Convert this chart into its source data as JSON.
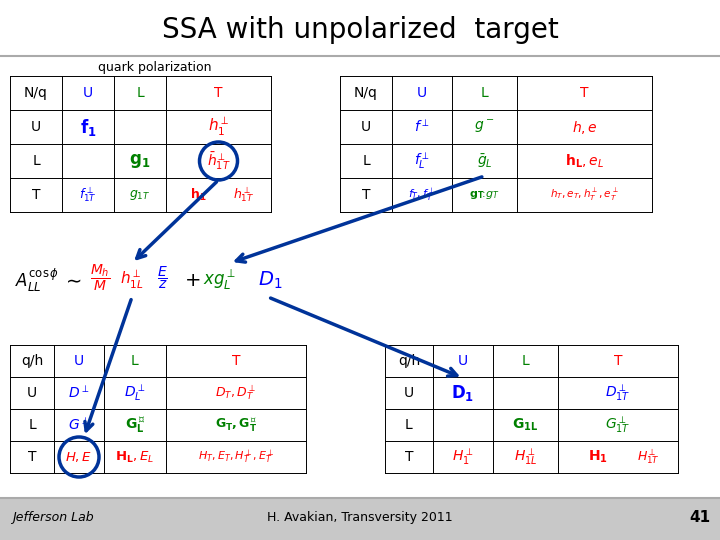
{
  "title": "SSA with unpolarized  target",
  "subtitle": "quark polarization",
  "footer_text": "H. Avakian, Transversity 2011",
  "footer_left": "Jefferson Lab",
  "page_num": "41",
  "white_bg": "#ffffff",
  "gray_bg": "#c8c8c8",
  "dark_blue": "#003399"
}
